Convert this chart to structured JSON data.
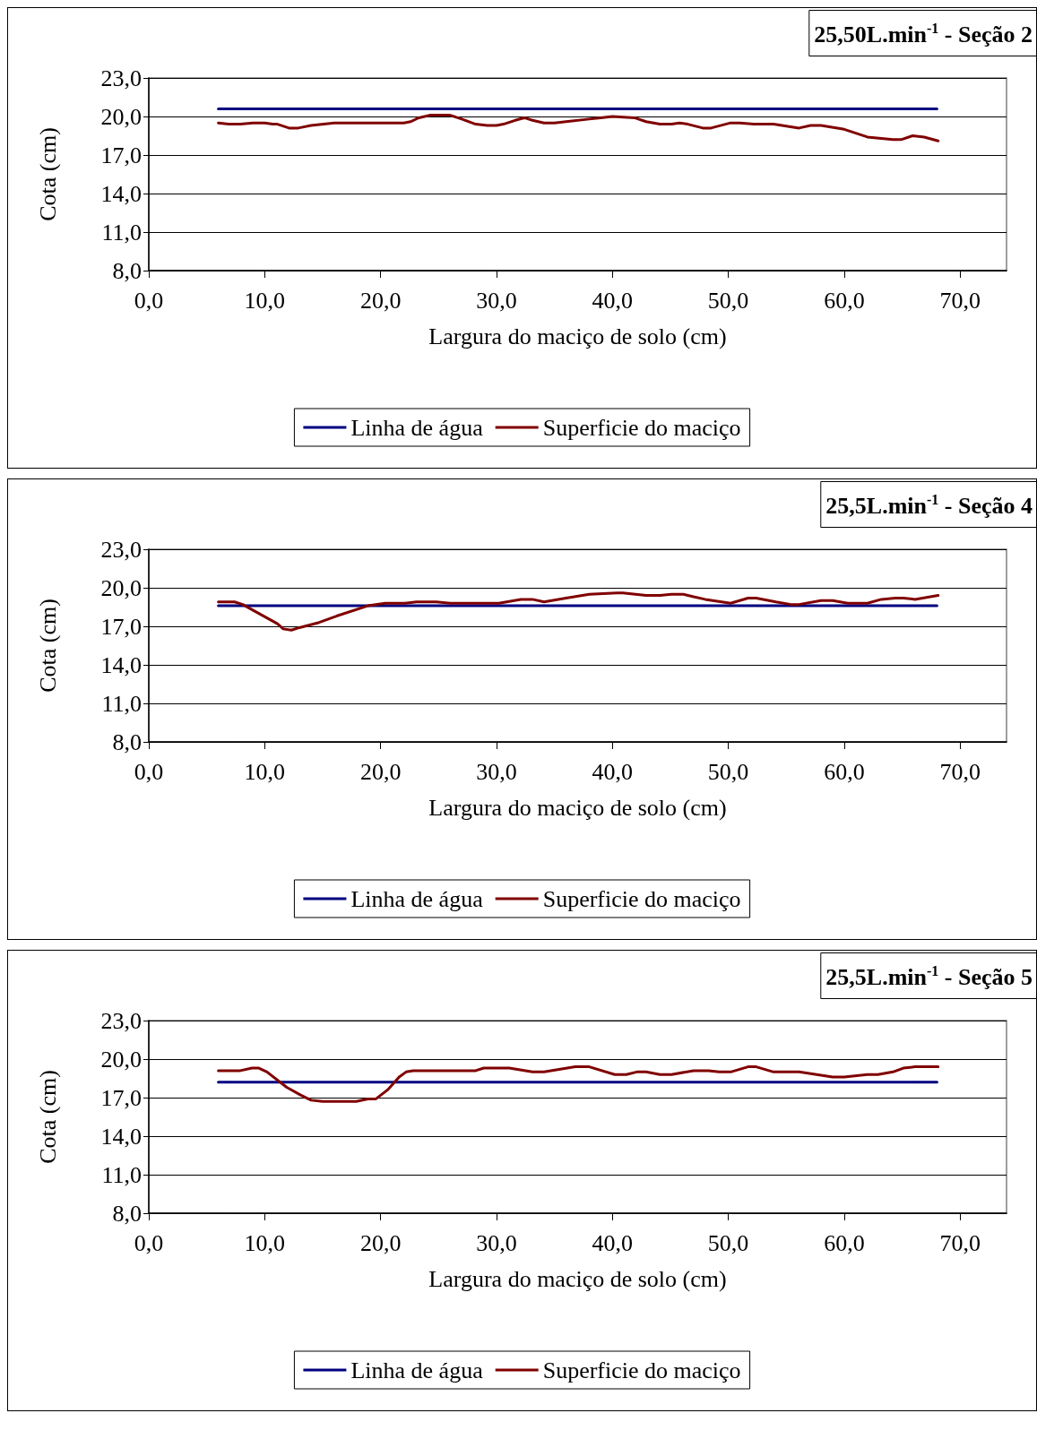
{
  "chart_data": [
    {
      "type": "line",
      "title": "25,50L.min$^{-1}$ - Seção 2",
      "xlabel": "Largura do maciço de solo (cm)",
      "ylabel": "Cota (cm)",
      "xlim": [
        0,
        74
      ],
      "ylim": [
        8,
        23
      ],
      "xticks": [
        {
          "value": 0,
          "label": "0,0"
        },
        {
          "value": 10,
          "label": "10,0"
        },
        {
          "value": 20,
          "label": "20,0"
        },
        {
          "value": 30,
          "label": "30,0"
        },
        {
          "value": 40,
          "label": "40,0"
        },
        {
          "value": 50,
          "label": "50,0"
        },
        {
          "value": 60,
          "label": "60,0"
        },
        {
          "value": 70,
          "label": "70,0"
        }
      ],
      "yticks": [
        {
          "value": 8,
          "label": "8,0"
        },
        {
          "value": 11,
          "label": "11,0"
        },
        {
          "value": 14,
          "label": "14,0"
        },
        {
          "value": 17,
          "label": "17,0"
        },
        {
          "value": 20,
          "label": "20,0"
        },
        {
          "value": 23,
          "label": "23,0"
        }
      ],
      "grid": "y",
      "legend": "bottom",
      "marker": "none",
      "line_style": "solid",
      "series": [
        {
          "name": "Linha de água",
          "color": "#000080",
          "x": [
            6,
            68
          ],
          "values": [
            20.6,
            20.6
          ]
        },
        {
          "name": "Superficie do maciço",
          "color": "#800000",
          "x": [
            6,
            6.9,
            7.9,
            9,
            10,
            10.7,
            11.1,
            12.1,
            12.9,
            14,
            16,
            17.9,
            20.1,
            22,
            22.6,
            23.3,
            24.3,
            25,
            26,
            27,
            28.2,
            29.2,
            30,
            30.6,
            31.6,
            32.4,
            33.1,
            34.1,
            35,
            36,
            38,
            39,
            40,
            41.9,
            42.9,
            44.1,
            45.1,
            45.8,
            46.5,
            47.8,
            48.5,
            50.2,
            51,
            52.2,
            53.9,
            56.1,
            57.1,
            58,
            60,
            62,
            64.2,
            64.9,
            65.9,
            66.9,
            68.1
          ],
          "values": [
            19.5,
            19.4,
            19.4,
            19.5,
            19.5,
            19.4,
            19.4,
            19.1,
            19.1,
            19.3,
            19.5,
            19.5,
            19.5,
            19.5,
            19.6,
            19.9,
            20.1,
            20.1,
            20.1,
            19.8,
            19.4,
            19.3,
            19.3,
            19.4,
            19.7,
            19.9,
            19.7,
            19.5,
            19.5,
            19.6,
            19.8,
            19.9,
            20.0,
            19.9,
            19.6,
            19.4,
            19.4,
            19.5,
            19.4,
            19.1,
            19.1,
            19.5,
            19.5,
            19.4,
            19.4,
            19.1,
            19.3,
            19.3,
            19.0,
            18.4,
            18.2,
            18.2,
            18.5,
            18.4,
            18.1
          ]
        }
      ]
    },
    {
      "type": "line",
      "title": "25,5L.min$^{-1}$ - Seção 4",
      "xlabel": "Largura do maciço de solo (cm)",
      "ylabel": "Cota (cm)",
      "xlim": [
        0,
        74
      ],
      "ylim": [
        8,
        23
      ],
      "xticks": [
        {
          "value": 0,
          "label": "0,0"
        },
        {
          "value": 10,
          "label": "10,0"
        },
        {
          "value": 20,
          "label": "20,0"
        },
        {
          "value": 30,
          "label": "30,0"
        },
        {
          "value": 40,
          "label": "40,0"
        },
        {
          "value": 50,
          "label": "50,0"
        },
        {
          "value": 60,
          "label": "60,0"
        },
        {
          "value": 70,
          "label": "70,0"
        }
      ],
      "yticks": [
        {
          "value": 8,
          "label": "8,0"
        },
        {
          "value": 11,
          "label": "11,0"
        },
        {
          "value": 14,
          "label": "14,0"
        },
        {
          "value": 17,
          "label": "17,0"
        },
        {
          "value": 20,
          "label": "20,0"
        },
        {
          "value": 23,
          "label": "23,0"
        }
      ],
      "grid": "y",
      "legend": "bottom",
      "marker": "none",
      "line_style": "solid",
      "series": [
        {
          "name": "Linha de água",
          "color": "#000080",
          "x": [
            6,
            68
          ],
          "values": [
            18.6,
            18.6
          ]
        },
        {
          "name": "Superficie do maciço",
          "color": "#800000",
          "x": [
            6,
            7.4,
            8.1,
            8.9,
            11.1,
            11.6,
            12.3,
            13,
            14.7,
            16.2,
            18.9,
            20.4,
            22.1,
            23.1,
            24.8,
            26,
            28.7,
            30.2,
            32.1,
            33.1,
            34.1,
            36,
            38,
            40.4,
            40.9,
            42.9,
            44.1,
            45.1,
            46.1,
            47,
            48,
            50.2,
            51.7,
            52.4,
            54.1,
            55.4,
            56.1,
            58,
            59,
            60.3,
            62,
            63.2,
            64.4,
            65.1,
            66.1,
            68.1
          ],
          "values": [
            18.9,
            18.9,
            18.7,
            18.3,
            17.2,
            16.8,
            16.7,
            16.9,
            17.3,
            17.8,
            18.6,
            18.8,
            18.8,
            18.9,
            18.9,
            18.8,
            18.8,
            18.8,
            19.1,
            19.1,
            18.9,
            19.2,
            19.5,
            19.6,
            19.6,
            19.4,
            19.4,
            19.5,
            19.5,
            19.3,
            19.1,
            18.8,
            19.2,
            19.2,
            18.9,
            18.7,
            18.7,
            19.0,
            19.0,
            18.8,
            18.8,
            19.1,
            19.2,
            19.2,
            19.1,
            19.4
          ]
        }
      ]
    },
    {
      "type": "line",
      "title": "25,5L.min$^{-1}$ - Seção 5",
      "xlabel": "Largura do maciço de solo (cm)",
      "ylabel": "Cota (cm)",
      "xlim": [
        0,
        74
      ],
      "ylim": [
        8,
        23
      ],
      "xticks": [
        {
          "value": 0,
          "label": "0,0"
        },
        {
          "value": 10,
          "label": "10,0"
        },
        {
          "value": 20,
          "label": "20,0"
        },
        {
          "value": 30,
          "label": "30,0"
        },
        {
          "value": 40,
          "label": "40,0"
        },
        {
          "value": 50,
          "label": "50,0"
        },
        {
          "value": 60,
          "label": "60,0"
        },
        {
          "value": 70,
          "label": "70,0"
        }
      ],
      "yticks": [
        {
          "value": 8,
          "label": "8,0"
        },
        {
          "value": 11,
          "label": "11,0"
        },
        {
          "value": 14,
          "label": "14,0"
        },
        {
          "value": 17,
          "label": "17,0"
        },
        {
          "value": 20,
          "label": "20,0"
        },
        {
          "value": 23,
          "label": "23,0"
        }
      ],
      "grid": "y",
      "legend": "bottom",
      "marker": "none",
      "line_style": "solid",
      "series": [
        {
          "name": "Linha de água",
          "color": "#000080",
          "x": [
            6,
            68
          ],
          "values": [
            18.2,
            18.2
          ]
        },
        {
          "name": "Superficie do maciço",
          "color": "#800000",
          "x": [
            6,
            7.9,
            8.9,
            9.5,
            10.2,
            11.9,
            13.1,
            14,
            15,
            17.9,
            18.9,
            19.6,
            20.6,
            21.6,
            22.2,
            22.8,
            28.2,
            28.9,
            31.1,
            33.1,
            34.1,
            36.8,
            38,
            40.2,
            41.2,
            42.1,
            42.9,
            44.1,
            45.1,
            47,
            48.3,
            49.2,
            50.2,
            51.7,
            52.4,
            53.9,
            56.1,
            59,
            60,
            62,
            62.9,
            64.2,
            65.1,
            66.1,
            68.1
          ],
          "values": [
            19.1,
            19.1,
            19.3,
            19.3,
            19.0,
            17.8,
            17.2,
            16.8,
            16.7,
            16.7,
            16.9,
            16.9,
            17.6,
            18.6,
            19.0,
            19.1,
            19.1,
            19.3,
            19.3,
            19.0,
            19.0,
            19.4,
            19.4,
            18.8,
            18.8,
            19.0,
            19.0,
            18.8,
            18.8,
            19.1,
            19.1,
            19.0,
            19.0,
            19.4,
            19.4,
            19.0,
            19.0,
            18.6,
            18.6,
            18.8,
            18.8,
            19.0,
            19.3,
            19.4,
            19.4
          ]
        }
      ]
    }
  ]
}
